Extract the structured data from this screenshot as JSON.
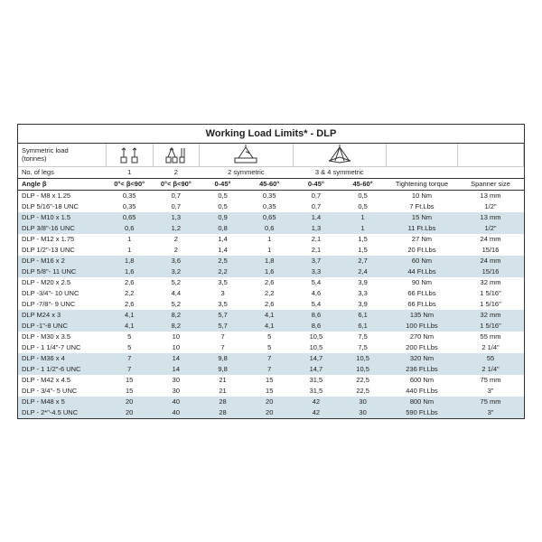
{
  "title": "Working Load Limits* - DLP",
  "header": {
    "sym_load": "Symmetric load\n(tonnes)",
    "legs_label": "No. of legs",
    "legs": [
      "1",
      "2",
      "2 symmetric",
      "3 & 4 symmetric",
      "",
      ""
    ],
    "angle_label": "Angle β",
    "angles": [
      "0°< β<90°",
      "0°< β<90°",
      "0-45°",
      "45-60°",
      "0-45°",
      "45-60°",
      "Tightening torque",
      "Spanner size"
    ]
  },
  "colors": {
    "shade": "#d4e3ea",
    "border": "#333333",
    "text": "#222222"
  },
  "rows": [
    {
      "shade": false,
      "name": "DLP - M8 x 1.25",
      "v": [
        "0,35",
        "0,7",
        "0,5",
        "0,35",
        "0,7",
        "0,5"
      ],
      "tight": "10 Nm",
      "span": "13 mm"
    },
    {
      "shade": false,
      "name": "DLP 5/16\"-18 UNC",
      "v": [
        "0,35",
        "0,7",
        "0,5",
        "0,35",
        "0,7",
        "0,5"
      ],
      "tight": "7 Ft.Lbs",
      "span": "1/2\""
    },
    {
      "shade": true,
      "name": "DLP - M10 x 1.5",
      "v": [
        "0,65",
        "1,3",
        "0,9",
        "0,65",
        "1,4",
        "1"
      ],
      "tight": "15 Nm",
      "span": "13 mm"
    },
    {
      "shade": true,
      "name": "DLP 3/8\"-16 UNC",
      "v": [
        "0,6",
        "1,2",
        "0,8",
        "0,6",
        "1,3",
        "1"
      ],
      "tight": "11 Ft.Lbs",
      "span": "1/2\""
    },
    {
      "shade": false,
      "name": "DLP - M12 x 1.75",
      "v": [
        "1",
        "2",
        "1,4",
        "1",
        "2,1",
        "1,5"
      ],
      "tight": "27 Nm",
      "span": "24 mm"
    },
    {
      "shade": false,
      "name": "DLP 1/2\"-13 UNC",
      "v": [
        "1",
        "2",
        "1,4",
        "1",
        "2,1",
        "1,5"
      ],
      "tight": "20 Ft.Lbs",
      "span": "15/16"
    },
    {
      "shade": true,
      "name": "DLP - M16 x 2",
      "v": [
        "1,8",
        "3,6",
        "2,5",
        "1,8",
        "3,7",
        "2,7"
      ],
      "tight": "60 Nm",
      "span": "24 mm"
    },
    {
      "shade": true,
      "name": "DLP 5/8\"- 11 UNC",
      "v": [
        "1,6",
        "3,2",
        "2,2",
        "1,6",
        "3,3",
        "2,4"
      ],
      "tight": "44 Ft.Lbs",
      "span": "15/16"
    },
    {
      "shade": false,
      "name": "DLP - M20 x 2.5",
      "v": [
        "2,6",
        "5,2",
        "3,5",
        "2,6",
        "5,4",
        "3,9"
      ],
      "tight": "90 Nm",
      "span": "32 mm"
    },
    {
      "shade": false,
      "name": "DLP -3/4\"- 10 UNC",
      "v": [
        "2,2",
        "4,4",
        "3",
        "2,2",
        "4,6",
        "3,3"
      ],
      "tight": "66 Ft.Lbs",
      "span": "1 5/16\""
    },
    {
      "shade": false,
      "name": "DLP -7/8\"- 9 UNC",
      "v": [
        "2,6",
        "5,2",
        "3,5",
        "2,6",
        "5,4",
        "3,9"
      ],
      "tight": "66 Ft.Lbs",
      "span": "1 5/16\""
    },
    {
      "shade": true,
      "name": "DLP M24 x 3",
      "v": [
        "4,1",
        "8,2",
        "5,7",
        "4,1",
        "8,6",
        "6,1"
      ],
      "tight": "135 Nm",
      "span": "32 mm"
    },
    {
      "shade": true,
      "name": "DLP -1\"-8 UNC",
      "v": [
        "4,1",
        "8,2",
        "5,7",
        "4,1",
        "8,6",
        "6,1"
      ],
      "tight": "100 Ft.Lbs",
      "span": "1 5/16\""
    },
    {
      "shade": false,
      "name": "DLP - M30 x 3.5",
      "v": [
        "5",
        "10",
        "7",
        "5",
        "10,5",
        "7,5"
      ],
      "tight": "270 Nm",
      "span": "55 mm"
    },
    {
      "shade": false,
      "name": "DLP - 1 1/4\"-7 UNC",
      "v": [
        "5",
        "10",
        "7",
        "5",
        "10,5",
        "7,5"
      ],
      "tight": "200 Ft.Lbs",
      "span": "2 1/4\""
    },
    {
      "shade": true,
      "name": "DLP - M36 x 4",
      "v": [
        "7",
        "14",
        "9,8",
        "7",
        "14,7",
        "10,5"
      ],
      "tight": "320 Nm",
      "span": "55"
    },
    {
      "shade": true,
      "name": "DLP - 1 1/2\"-6 UNC",
      "v": [
        "7",
        "14",
        "9,8",
        "7",
        "14,7",
        "10,5"
      ],
      "tight": "236 Ft.Lbs",
      "span": "2 1/4\""
    },
    {
      "shade": false,
      "name": "DLP - M42 x 4.5",
      "v": [
        "15",
        "30",
        "21",
        "15",
        "31,5",
        "22,5"
      ],
      "tight": "600 Nm",
      "span": "75 mm"
    },
    {
      "shade": false,
      "name": "DLP - 3/4\"- 5 UNC",
      "v": [
        "15",
        "30",
        "21",
        "15",
        "31,5",
        "22,5"
      ],
      "tight": "440 Ft.Lbs",
      "span": "3\""
    },
    {
      "shade": true,
      "name": "DLP - M48 x 5",
      "v": [
        "20",
        "40",
        "28",
        "20",
        "42",
        "30"
      ],
      "tight": "800 Nm",
      "span": "75 mm"
    },
    {
      "shade": true,
      "name": "DLP - 2*\"-4.5 UNC",
      "v": [
        "20",
        "40",
        "28",
        "20",
        "42",
        "30"
      ],
      "tight": "590 Ft.Lbs",
      "span": "3\""
    }
  ]
}
